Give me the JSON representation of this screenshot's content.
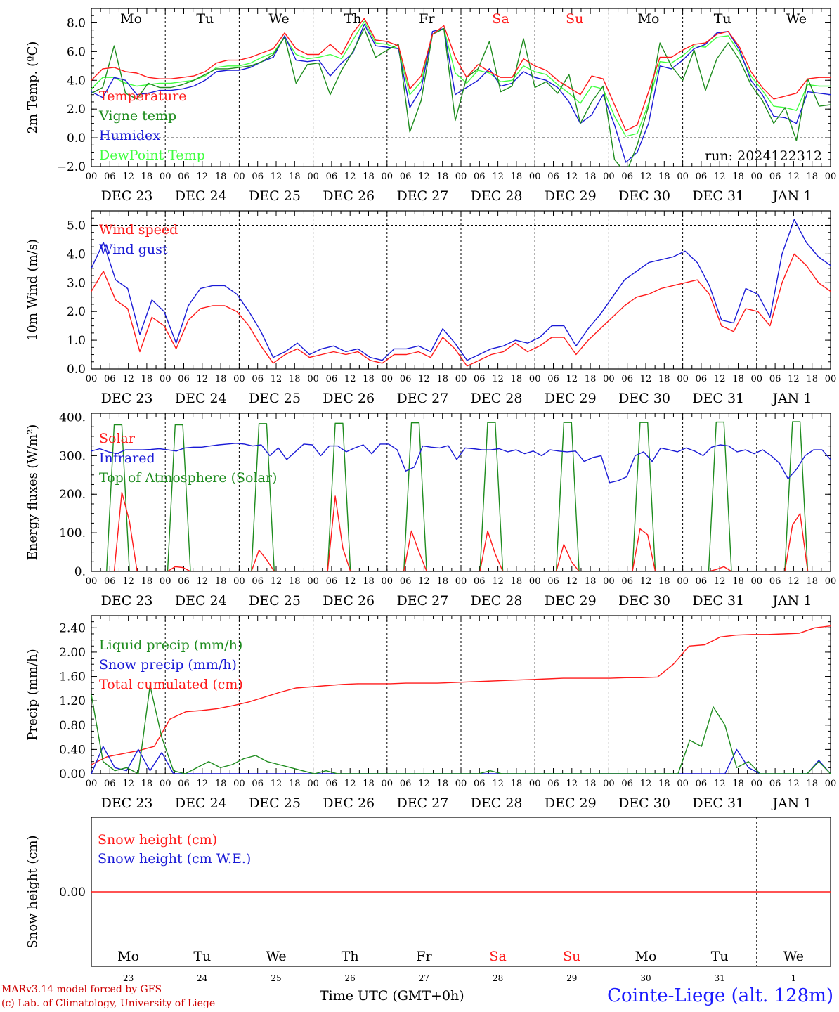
{
  "station": "Cointe-Liege (alt. 128m)",
  "footer": {
    "line1": "MARv3.14 model forced by GFS",
    "line2": "(c) Lab. of Climatology, University of Liege"
  },
  "xlabel": "Time UTC (GMT+0h)",
  "dates": [
    "DEC 23",
    "DEC 24",
    "DEC 25",
    "DEC 26",
    "DEC 27",
    "DEC 28",
    "DEC 29",
    "DEC 30",
    "DEC 31",
    "JAN  1"
  ],
  "days_of_week": [
    "Mo",
    "Tu",
    "We",
    "Th",
    "Fr",
    "Sa",
    "Su",
    "Mo",
    "Tu",
    "We"
  ],
  "day_numbers": [
    "23",
    "24",
    "25",
    "26",
    "27",
    "28",
    "29",
    "30",
    "31",
    "1"
  ],
  "weekend_color": "#ff1a1a",
  "hour_labels": [
    "00",
    "06",
    "12",
    "18"
  ],
  "chart_data": [
    {
      "type": "line",
      "ylabel": "2m Temp. (ºC)",
      "ylim": [
        -2,
        9
      ],
      "yticks": [
        "8.0",
        "6.0",
        "4.0",
        "2.0",
        "0.0",
        "−2.0"
      ],
      "ytick_values": [
        8,
        6,
        4,
        2,
        0,
        -2
      ],
      "zero_line": 0,
      "show_dow": true,
      "run": "run: 2024122312",
      "x_hours_step": 3,
      "series": [
        {
          "name": "Temperature",
          "color": "#ff1a1a",
          "values": [
            4.0,
            4.8,
            4.9,
            4.6,
            4.5,
            4.2,
            4.1,
            4.1,
            4.2,
            4.3,
            4.6,
            5.2,
            5.4,
            5.4,
            5.6,
            5.9,
            6.2,
            7.3,
            6.2,
            5.8,
            5.8,
            6.5,
            5.8,
            7.3,
            8.3,
            6.8,
            6.7,
            6.4,
            3.4,
            4.3,
            7.2,
            7.8,
            5.6,
            4.2,
            5.1,
            4.6,
            4.2,
            4.2,
            5.5,
            5.0,
            4.7,
            4.0,
            3.5,
            3.0,
            4.3,
            4.1,
            2.3,
            0.5,
            0.9,
            3.2,
            5.6,
            5.6,
            6.1,
            6.5,
            6.6,
            7.2,
            7.4,
            6.3,
            4.6,
            3.5,
            2.7,
            2.9,
            3.1,
            4.1,
            4.2,
            4.2
          ]
        },
        {
          "name": "Vigne temp",
          "color": "#1e8c1e",
          "values": [
            3.1,
            3.5,
            6.4,
            3.1,
            2.7,
            3.8,
            3.5,
            3.5,
            3.7,
            4.0,
            4.4,
            4.8,
            4.8,
            4.9,
            5.0,
            5.3,
            5.8,
            7.0,
            3.8,
            5.1,
            5.2,
            3.0,
            4.7,
            6.0,
            7.6,
            5.6,
            6.1,
            6.5,
            0.4,
            2.6,
            7.2,
            7.6,
            1.2,
            4.2,
            4.8,
            6.7,
            3.2,
            3.6,
            6.9,
            3.5,
            3.9,
            3.1,
            4.4,
            1.0,
            2.5,
            3.6,
            -1.5,
            -2.5,
            -0.5,
            2.2,
            6.6,
            5.0,
            4.0,
            6.1,
            3.3,
            5.5,
            6.6,
            5.4,
            3.7,
            2.6,
            1.0,
            2.1,
            -0.2,
            4.1,
            2.2,
            2.3
          ]
        },
        {
          "name": "Humidex",
          "color": "#1a1ad6",
          "values": [
            3.2,
            2.8,
            4.2,
            4.0,
            3.0,
            3.1,
            3.3,
            3.3,
            3.4,
            3.6,
            4.0,
            4.6,
            4.7,
            4.7,
            4.9,
            5.3,
            5.6,
            7.1,
            5.4,
            5.3,
            5.4,
            4.3,
            5.2,
            5.9,
            7.9,
            6.4,
            6.3,
            6.2,
            2.1,
            3.4,
            7.4,
            7.6,
            3.0,
            3.5,
            4.0,
            4.8,
            3.6,
            3.8,
            4.6,
            4.2,
            4.0,
            3.5,
            2.5,
            1.0,
            1.6,
            3.0,
            0.9,
            -1.7,
            -1.0,
            1.0,
            5.0,
            4.8,
            5.4,
            6.2,
            6.5,
            7.3,
            7.4,
            6.1,
            4.0,
            3.0,
            1.5,
            1.4,
            1.0,
            3.2,
            3.1,
            3.0
          ]
        },
        {
          "name": "DewPoint Temp",
          "color": "#40ff40",
          "values": [
            3.4,
            4.2,
            4.2,
            3.8,
            3.6,
            3.7,
            3.8,
            3.8,
            3.9,
            4.0,
            4.3,
            4.9,
            5.0,
            5.0,
            5.2,
            5.6,
            5.9,
            7.0,
            5.8,
            5.5,
            5.6,
            5.8,
            5.5,
            6.8,
            8.1,
            6.6,
            6.5,
            6.2,
            3.0,
            3.9,
            7.2,
            7.6,
            4.5,
            3.8,
            4.7,
            4.5,
            3.9,
            4.0,
            5.0,
            4.6,
            4.4,
            3.7,
            3.1,
            2.4,
            3.6,
            3.4,
            1.5,
            0.1,
            0.3,
            2.4,
            5.3,
            5.2,
            5.7,
            6.4,
            6.3,
            7.0,
            7.1,
            5.9,
            4.3,
            3.3,
            2.2,
            2.1,
            1.9,
            3.7,
            3.6,
            3.6
          ]
        }
      ]
    },
    {
      "type": "line",
      "ylabel": "10m Wind (m/s)",
      "ylim": [
        0,
        5.5
      ],
      "yticks": [
        "5.0",
        "4.0",
        "3.0",
        "2.0",
        "1.0",
        "0.0"
      ],
      "ytick_values": [
        5,
        4,
        3,
        2,
        1,
        0
      ],
      "hline": 5,
      "x_hours_step": 3,
      "series": [
        {
          "name": "Wind speed",
          "color": "#ff1a1a",
          "values": [
            2.7,
            3.4,
            2.4,
            2.1,
            0.6,
            1.8,
            1.5,
            0.7,
            1.7,
            2.1,
            2.2,
            2.2,
            2.0,
            1.5,
            0.8,
            0.2,
            0.5,
            0.7,
            0.4,
            0.5,
            0.6,
            0.5,
            0.6,
            0.3,
            0.2,
            0.5,
            0.5,
            0.6,
            0.4,
            1.1,
            0.7,
            0.1,
            0.3,
            0.5,
            0.6,
            0.9,
            0.6,
            0.8,
            1.1,
            1.1,
            0.5,
            1.0,
            1.4,
            1.8,
            2.2,
            2.5,
            2.6,
            2.8,
            2.9,
            3.0,
            3.1,
            2.6,
            1.5,
            1.3,
            2.1,
            2.0,
            1.5,
            3.0,
            4.0,
            3.6,
            3.0,
            2.7
          ]
        },
        {
          "name": "Wind gust",
          "color": "#1a1ad6",
          "values": [
            3.5,
            4.4,
            3.1,
            2.8,
            1.2,
            2.4,
            2.0,
            0.9,
            2.2,
            2.8,
            2.9,
            2.9,
            2.6,
            2.0,
            1.3,
            0.4,
            0.6,
            0.9,
            0.5,
            0.7,
            0.8,
            0.6,
            0.7,
            0.4,
            0.3,
            0.7,
            0.7,
            0.8,
            0.6,
            1.4,
            0.9,
            0.3,
            0.5,
            0.7,
            0.8,
            1.0,
            0.9,
            1.1,
            1.5,
            1.5,
            0.8,
            1.4,
            1.9,
            2.5,
            3.1,
            3.4,
            3.7,
            3.8,
            3.9,
            4.1,
            3.7,
            2.9,
            1.7,
            1.6,
            2.8,
            2.6,
            1.8,
            4.0,
            5.2,
            4.4,
            3.9,
            3.6
          ]
        }
      ]
    },
    {
      "type": "line",
      "ylabel": "Energy fluxes (W/m²)",
      "ylim": [
        0,
        410
      ],
      "yticks": [
        "400.",
        "300.",
        "200.",
        "100.",
        "0."
      ],
      "ytick_values": [
        400,
        300,
        200,
        100,
        0
      ],
      "x_hours_step": 3,
      "series": [
        {
          "name": "Solar",
          "color": "#ff1a1a",
          "values": [
            0,
            0,
            0,
            0,
            205,
            130,
            0,
            0,
            0,
            0,
            0,
            12,
            10,
            0,
            0,
            0,
            0,
            0,
            0,
            0,
            0,
            0,
            55,
            30,
            0,
            0,
            0,
            0,
            0,
            0,
            0,
            0,
            195,
            60,
            0,
            0,
            0,
            0,
            0,
            0,
            0,
            0,
            105,
            50,
            0,
            0,
            0,
            0,
            0,
            0,
            0,
            0,
            105,
            45,
            0,
            0,
            0,
            0,
            0,
            0,
            0,
            0,
            70,
            25,
            0,
            0,
            0,
            0,
            0,
            0,
            0,
            0,
            110,
            95,
            0,
            0,
            0,
            0,
            0,
            0,
            0,
            0,
            5,
            12,
            0,
            0,
            0,
            0,
            0,
            0,
            0,
            0,
            120,
            150,
            0,
            0,
            0,
            0
          ]
        },
        {
          "name": "Infrared",
          "color": "#1a1ad6",
          "values": [
            312,
            318,
            310,
            305,
            315,
            315,
            315,
            316,
            318,
            315,
            312,
            320,
            322,
            322,
            325,
            328,
            330,
            332,
            330,
            325,
            328,
            300,
            320,
            290,
            310,
            330,
            328,
            300,
            325,
            325,
            310,
            320,
            328,
            305,
            330,
            330,
            315,
            260,
            270,
            325,
            322,
            320,
            326,
            290,
            320,
            318,
            315,
            315,
            318,
            310,
            315,
            305,
            312,
            300,
            315,
            312,
            310,
            312,
            285,
            295,
            300,
            230,
            235,
            245,
            300,
            310,
            285,
            320,
            315,
            310,
            320,
            312,
            300,
            322,
            328,
            325,
            310,
            315,
            305,
            315,
            300,
            280,
            240,
            265,
            300,
            315,
            315,
            290
          ]
        },
        {
          "name": "Top of Atmosphere (Solar)",
          "color": "#1e8c1e",
          "values": [
            0,
            0,
            0,
            380,
            380,
            0,
            0,
            0,
            0,
            0,
            0,
            380,
            380,
            0,
            0,
            0,
            0,
            0,
            0,
            0,
            0,
            0,
            383,
            383,
            0,
            0,
            0,
            0,
            0,
            0,
            0,
            0,
            384,
            384,
            0,
            0,
            0,
            0,
            0,
            0,
            0,
            0,
            385,
            385,
            0,
            0,
            0,
            0,
            0,
            0,
            0,
            0,
            386,
            386,
            0,
            0,
            0,
            0,
            0,
            0,
            0,
            0,
            386,
            386,
            0,
            0,
            0,
            0,
            0,
            0,
            0,
            0,
            386,
            386,
            0,
            0,
            0,
            0,
            0,
            0,
            0,
            0,
            387,
            387,
            0,
            0,
            0,
            0,
            0,
            0,
            0,
            0,
            388,
            388,
            0,
            0,
            0,
            0
          ]
        }
      ]
    },
    {
      "type": "line",
      "ylabel": "Precip (mm/h)",
      "ylim": [
        0,
        2.6
      ],
      "yticks": [
        "2.40",
        "2.00",
        "1.60",
        "1.20",
        "0.80",
        "0.40",
        "0.00"
      ],
      "ytick_values": [
        2.4,
        2.0,
        1.6,
        1.2,
        0.8,
        0.4,
        0.0
      ],
      "x_hours_step": 3,
      "series": [
        {
          "name": "Liquid precip (mm/h)",
          "color": "#1e8c1e",
          "values": [
            1.3,
            0.2,
            0.05,
            0.1,
            0.0,
            1.45,
            0.6,
            0.05,
            0.0,
            0.1,
            0.2,
            0.1,
            0.15,
            0.25,
            0.3,
            0.2,
            0.15,
            0.1,
            0.05,
            0.0,
            0.05,
            0.0,
            0.0,
            0.0,
            0.0,
            0.0,
            0.0,
            0.0,
            0.0,
            0.0,
            0.0,
            0.0,
            0.0,
            0.0,
            0.05,
            0.0,
            0.0,
            0.0,
            0.0,
            0.0,
            0.0,
            0.0,
            0.0,
            0.0,
            0.0,
            0.0,
            0.0,
            0.0,
            0.0,
            0.0,
            0.0,
            0.55,
            0.45,
            1.1,
            0.8,
            0.1,
            0.2,
            0.0,
            0.0,
            0.0,
            0.0,
            0.0,
            0.2,
            0.0
          ]
        },
        {
          "name": "Snow precip (mm/h)",
          "color": "#1a1ad6",
          "values": [
            0.0,
            0.45,
            0.1,
            0.05,
            0.4,
            0.05,
            0.35,
            0.0,
            0.0,
            0.0,
            0.0,
            0.0,
            0.0,
            0.0,
            0.0,
            0.0,
            0.0,
            0.0,
            0.0,
            0.0,
            0.0,
            0.0,
            0.0,
            0.0,
            0.0,
            0.0,
            0.0,
            0.0,
            0.0,
            0.0,
            0.0,
            0.0,
            0.0,
            0.0,
            0.0,
            0.0,
            0.0,
            0.0,
            0.0,
            0.0,
            0.0,
            0.0,
            0.0,
            0.0,
            0.0,
            0.0,
            0.0,
            0.0,
            0.0,
            0.0,
            0.0,
            0.0,
            0.0,
            0.0,
            0.0,
            0.4,
            0.1,
            0.0,
            0.0,
            0.0,
            0.0,
            0.0,
            0.22,
            0.0
          ]
        },
        {
          "name": "Total cumulated (cm)",
          "color": "#ff1a1a",
          "values": [
            0.15,
            0.28,
            0.33,
            0.38,
            0.45,
            0.9,
            1.02,
            1.04,
            1.07,
            1.12,
            1.18,
            1.26,
            1.34,
            1.41,
            1.43,
            1.45,
            1.47,
            1.48,
            1.48,
            1.48,
            1.49,
            1.49,
            1.49,
            1.5,
            1.51,
            1.52,
            1.53,
            1.54,
            1.55,
            1.56,
            1.57,
            1.57,
            1.57,
            1.57,
            1.58,
            1.58,
            1.59,
            1.8,
            2.1,
            2.12,
            2.25,
            2.28,
            2.29,
            2.29,
            2.3,
            2.31,
            2.4,
            2.43
          ]
        }
      ]
    },
    {
      "type": "line",
      "ylabel": "Snow height (cm)",
      "ylim": [
        -1,
        1
      ],
      "yticks": [
        "0.00"
      ],
      "ytick_values": [
        0
      ],
      "x_hours_step": 72,
      "show_dow_bottom": true,
      "series": [
        {
          "name": "Snow height (cm)",
          "color": "#ff1a1a",
          "values": [
            0,
            0,
            0,
            0
          ]
        },
        {
          "name": "Snow height (cm W.E.)",
          "color": "#1a1ad6",
          "values": []
        }
      ]
    }
  ]
}
